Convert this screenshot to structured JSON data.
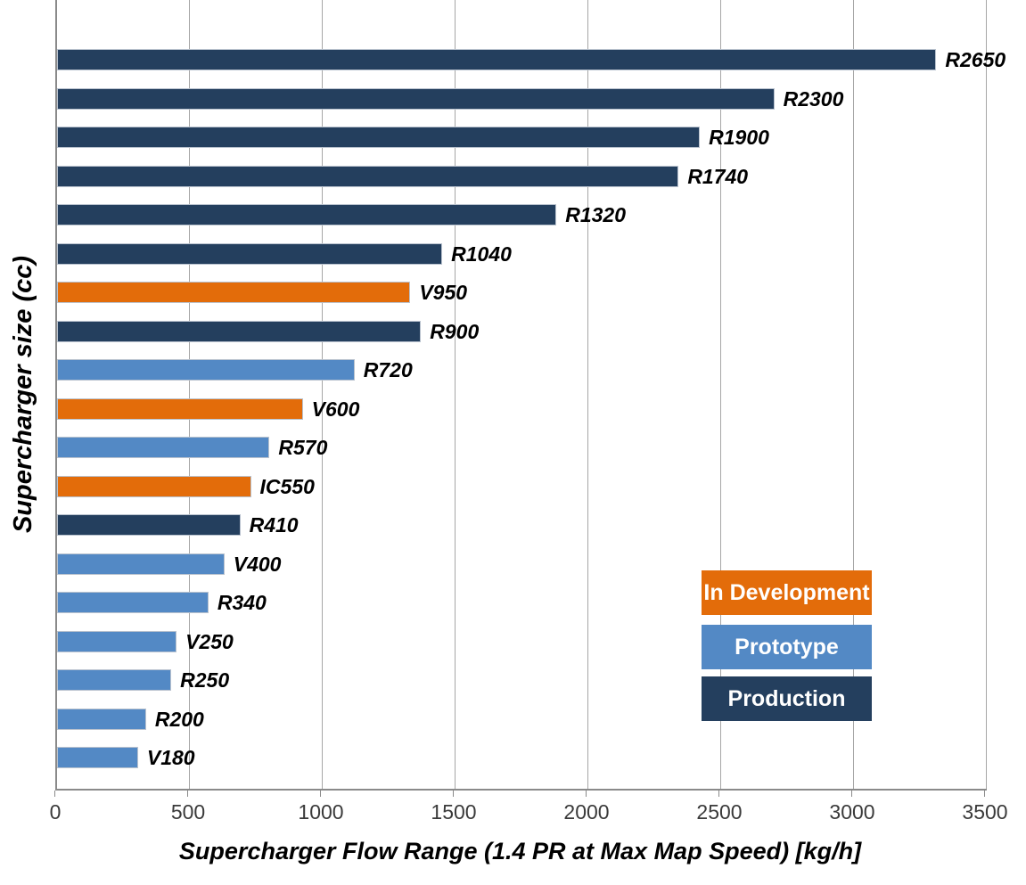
{
  "chart_data": {
    "type": "bar",
    "orientation": "horizontal",
    "xlabel": "Supercharger Flow Range (1.4 PR at Max Map Speed) [kg/h]",
    "ylabel": "Supercharger size (cc)",
    "xlim": [
      0,
      3500
    ],
    "x_ticks": [
      0,
      500,
      1000,
      1500,
      2000,
      2500,
      3000,
      3500
    ],
    "grid": "vertical major gridlines only",
    "legend_position": "inside lower right",
    "series": [
      {
        "name": "In Development",
        "color": "#E36C0A"
      },
      {
        "name": "Prototype",
        "color": "#5389C5"
      },
      {
        "name": "Production",
        "color": "#243F5E"
      }
    ],
    "bars": [
      {
        "label": "R2650",
        "value": 3310,
        "series": "Production"
      },
      {
        "label": "R2300",
        "value": 2700,
        "series": "Production"
      },
      {
        "label": "R1900",
        "value": 2420,
        "series": "Production"
      },
      {
        "label": "R1740",
        "value": 2340,
        "series": "Production"
      },
      {
        "label": "R1320",
        "value": 1880,
        "series": "Production"
      },
      {
        "label": "R1040",
        "value": 1450,
        "series": "Production"
      },
      {
        "label": "V950",
        "value": 1330,
        "series": "In Development"
      },
      {
        "label": "R900",
        "value": 1370,
        "series": "Production"
      },
      {
        "label": "R720",
        "value": 1120,
        "series": "Prototype"
      },
      {
        "label": "V600",
        "value": 925,
        "series": "In Development"
      },
      {
        "label": "R570",
        "value": 800,
        "series": "Prototype"
      },
      {
        "label": "IC550",
        "value": 730,
        "series": "In Development"
      },
      {
        "label": "R410",
        "value": 690,
        "series": "Production"
      },
      {
        "label": "V400",
        "value": 630,
        "series": "Prototype"
      },
      {
        "label": "R340",
        "value": 570,
        "series": "Prototype"
      },
      {
        "label": "V250",
        "value": 450,
        "series": "Prototype"
      },
      {
        "label": "R250",
        "value": 430,
        "series": "Prototype"
      },
      {
        "label": "R200",
        "value": 335,
        "series": "Prototype"
      },
      {
        "label": "V180",
        "value": 305,
        "series": "Prototype"
      }
    ],
    "colors": {
      "gridline": "#A6A6A6",
      "axis_line": "#8A8A8A",
      "tick_label": "#3A3A3A",
      "bar_border": "#B9C2CE"
    }
  }
}
